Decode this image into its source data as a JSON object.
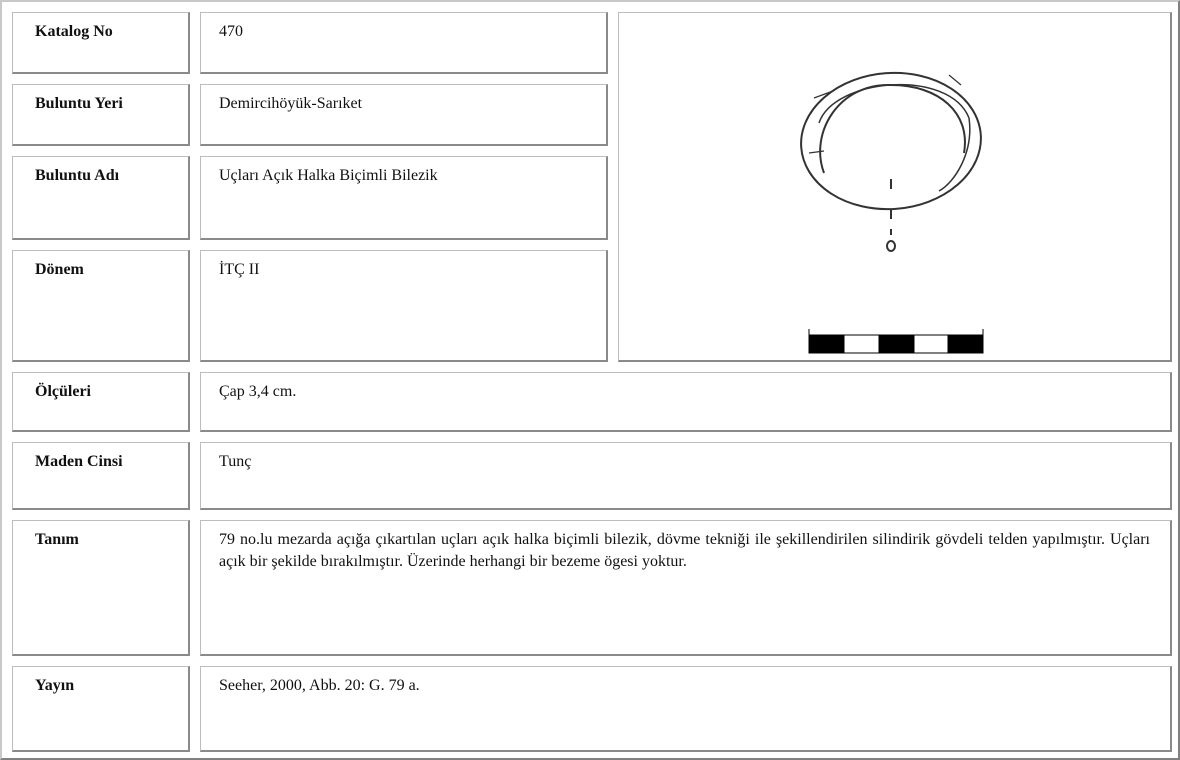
{
  "fields": [
    {
      "label": "Katalog No",
      "value": "470"
    },
    {
      "label": "Buluntu Yeri",
      "value": "Demircihöyük-Sarıket"
    },
    {
      "label": "Buluntu Adı",
      "value": "Uçları Açık Halka Biçimli Bilezik"
    },
    {
      "label": "Dönem",
      "value": "İTÇ II"
    },
    {
      "label": "Ölçüleri",
      "value": "Çap 3,4 cm."
    },
    {
      "label": "Maden Cinsi",
      "value": "Tunç"
    },
    {
      "label": "Tanım",
      "value": "79 no.lu mezarda açığa çıkartılan uçları açık halka biçimli bilezik, dövme tekniği ile şekillendirilen silindirik gövdeli telden yapılmıştır. Uçları açık bir şekilde bırakılmıştır. Üzerinde herhangi bir bezeme ögesi yoktur."
    },
    {
      "label": "Yayın",
      "value": "Seeher, 2000, Abb. 20: G. 79 a."
    }
  ]
}
